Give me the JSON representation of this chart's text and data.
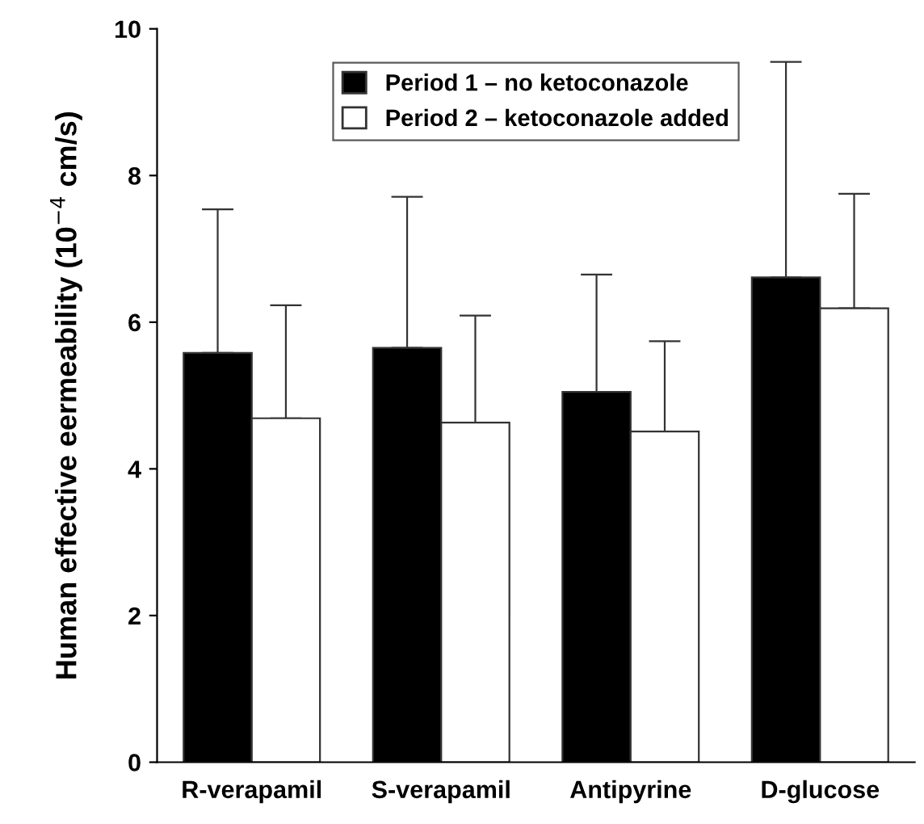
{
  "chart_data": {
    "type": "bar",
    "ylabel": "Human effective eermeability (10$^{−4}$ cm/s)",
    "categories": [
      "R-verapamil",
      "S-verapamil",
      "Antipyrine",
      "D-glucose"
    ],
    "series": [
      {
        "name": "Period 1 – no ketoconazole",
        "color": "#000000",
        "values": [
          5.58,
          5.65,
          5.05,
          6.61
        ],
        "errors": [
          [
            5.58,
            7.54
          ],
          [
            5.65,
            7.71
          ],
          [
            5.05,
            6.65
          ],
          [
            6.61,
            9.55
          ]
        ]
      },
      {
        "name": "Period 2 – ketoconazole added",
        "color": "#ffffff",
        "values": [
          4.69,
          4.63,
          4.51,
          6.19
        ],
        "errors": [
          [
            4.69,
            6.23
          ],
          [
            4.63,
            6.09
          ],
          [
            4.51,
            5.74
          ],
          [
            6.19,
            7.75
          ]
        ]
      }
    ],
    "ylim": [
      0,
      10
    ],
    "yticks": [
      0,
      2,
      4,
      6,
      8,
      10
    ],
    "legend": "top",
    "grid": false
  }
}
